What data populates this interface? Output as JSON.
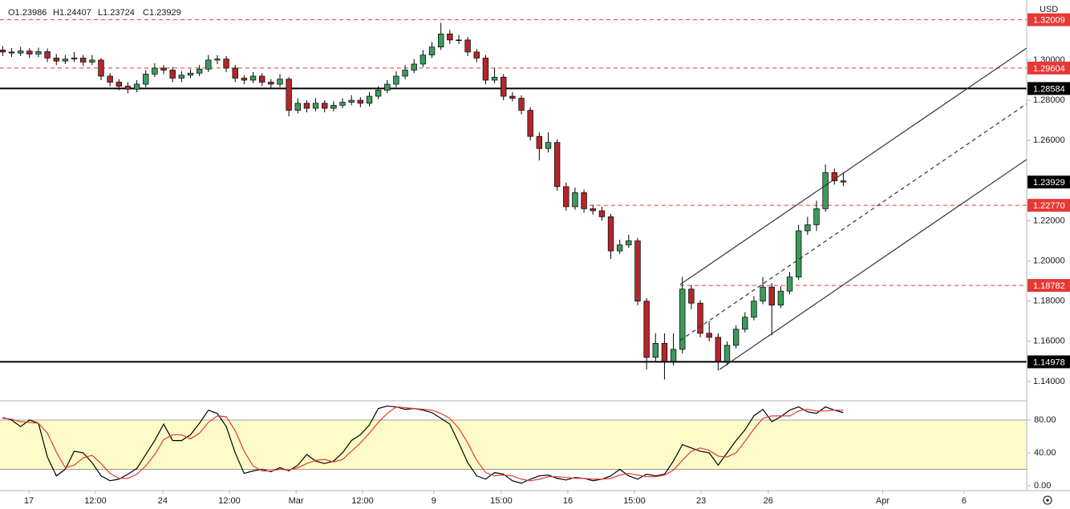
{
  "chart_data": [
    {
      "type": "candlestick",
      "currency": "USD",
      "ohlc_header": [
        "O1.23986",
        "H1.24407",
        "L1.23724",
        "C1.23929"
      ],
      "xlim": [
        -0.3,
        114.5
      ],
      "ylim": [
        1.1304,
        1.3299
      ],
      "yticks": [
        {
          "value": 1.14,
          "label": "1.14000"
        },
        {
          "value": 1.16,
          "label": "1.16000"
        },
        {
          "value": 1.18,
          "label": "1.18000"
        },
        {
          "value": 1.2,
          "label": "1.20000"
        },
        {
          "value": 1.22,
          "label": "1.22000"
        },
        {
          "value": 1.26,
          "label": "1.26000"
        },
        {
          "value": 1.28,
          "label": "1.28000"
        },
        {
          "value": 1.3,
          "label": "1.30000"
        }
      ],
      "up_color": "#3c9a5c",
      "down_color": "#b3262b",
      "candles": [
        [
          1.305,
          1.307,
          1.302,
          1.304
        ],
        [
          1.304,
          1.306,
          1.3015,
          1.3035
        ],
        [
          1.3035,
          1.3065,
          1.302,
          1.3045
        ],
        [
          1.3045,
          1.306,
          1.301,
          1.303
        ],
        [
          1.303,
          1.3062,
          1.3015,
          1.3042
        ],
        [
          1.3042,
          1.3058,
          1.299,
          1.301
        ],
        [
          1.301,
          1.303,
          1.2975,
          1.2995
        ],
        [
          1.2995,
          1.3025,
          1.298,
          1.3005
        ],
        [
          1.3005,
          1.304,
          1.299,
          1.301
        ],
        [
          1.301,
          1.3025,
          1.297,
          1.299
        ],
        [
          1.299,
          1.3025,
          1.2975,
          1.3
        ],
        [
          1.3,
          1.301,
          1.29,
          1.292
        ],
        [
          1.292,
          1.2935,
          1.287,
          1.289
        ],
        [
          1.289,
          1.2905,
          1.285,
          1.287
        ],
        [
          1.287,
          1.289,
          1.2835,
          1.2855
        ],
        [
          1.2855,
          1.29,
          1.284,
          1.288
        ],
        [
          1.288,
          1.295,
          1.2865,
          1.293
        ],
        [
          1.293,
          1.2985,
          1.2915,
          1.296
        ],
        [
          1.296,
          1.2975,
          1.293,
          1.295
        ],
        [
          1.295,
          1.2965,
          1.289,
          1.291
        ],
        [
          1.291,
          1.2945,
          1.289,
          1.2925
        ],
        [
          1.2925,
          1.2955,
          1.291,
          1.2935
        ],
        [
          1.2935,
          1.2975,
          1.292,
          1.2955
        ],
        [
          1.2955,
          1.3025,
          1.294,
          1.3
        ],
        [
          1.3,
          1.3025,
          1.298,
          1.3005
        ],
        [
          1.3005,
          1.302,
          1.294,
          1.296
        ],
        [
          1.296,
          1.2975,
          1.289,
          1.291
        ],
        [
          1.291,
          1.2925,
          1.288,
          1.29
        ],
        [
          1.29,
          1.294,
          1.2885,
          1.292
        ],
        [
          1.292,
          1.2935,
          1.287,
          1.289
        ],
        [
          1.289,
          1.2905,
          1.286,
          1.288
        ],
        [
          1.288,
          1.293,
          1.2865,
          1.2905
        ],
        [
          1.2905,
          1.2915,
          1.272,
          1.275
        ],
        [
          1.275,
          1.281,
          1.2735,
          1.2785
        ],
        [
          1.2785,
          1.28,
          1.274,
          1.276
        ],
        [
          1.276,
          1.281,
          1.2745,
          1.2785
        ],
        [
          1.2785,
          1.28,
          1.274,
          1.276
        ],
        [
          1.276,
          1.2795,
          1.2745,
          1.2775
        ],
        [
          1.2775,
          1.281,
          1.276,
          1.279
        ],
        [
          1.279,
          1.2825,
          1.2775,
          1.28
        ],
        [
          1.28,
          1.2815,
          1.2765,
          1.2785
        ],
        [
          1.2785,
          1.284,
          1.277,
          1.282
        ],
        [
          1.282,
          1.287,
          1.2805,
          1.285
        ],
        [
          1.285,
          1.29,
          1.2835,
          1.288
        ],
        [
          1.288,
          1.2945,
          1.2865,
          1.292
        ],
        [
          1.292,
          1.2975,
          1.2905,
          1.295
        ],
        [
          1.295,
          1.3005,
          1.2935,
          1.298
        ],
        [
          1.298,
          1.305,
          1.2965,
          1.3025
        ],
        [
          1.3025,
          1.309,
          1.301,
          1.3065
        ],
        [
          1.3065,
          1.3185,
          1.305,
          1.313
        ],
        [
          1.313,
          1.315,
          1.308,
          1.31
        ],
        [
          1.31,
          1.3125,
          1.308,
          1.31
        ],
        [
          1.31,
          1.3115,
          1.302,
          1.304
        ],
        [
          1.304,
          1.3055,
          1.299,
          1.301
        ],
        [
          1.301,
          1.3025,
          1.288,
          1.29
        ],
        [
          1.29,
          1.296,
          1.2885,
          1.2915
        ],
        [
          1.2915,
          1.293,
          1.28,
          1.282
        ],
        [
          1.282,
          1.284,
          1.2795,
          1.281
        ],
        [
          1.281,
          1.2825,
          1.273,
          1.275
        ],
        [
          1.275,
          1.2765,
          1.26,
          1.262
        ],
        [
          1.262,
          1.264,
          1.25,
          1.256
        ],
        [
          1.256,
          1.264,
          1.254,
          1.259
        ],
        [
          1.259,
          1.2605,
          1.235,
          1.237
        ],
        [
          1.237,
          1.239,
          1.225,
          1.227
        ],
        [
          1.227,
          1.2365,
          1.2255,
          1.234
        ],
        [
          1.234,
          1.2355,
          1.224,
          1.226
        ],
        [
          1.226,
          1.228,
          1.223,
          1.225
        ],
        [
          1.225,
          1.227,
          1.22,
          1.222
        ],
        [
          1.222,
          1.2235,
          1.201,
          1.205
        ],
        [
          1.205,
          1.2105,
          1.2035,
          1.208
        ],
        [
          1.208,
          1.213,
          1.2065,
          1.21
        ],
        [
          1.21,
          1.2115,
          1.178,
          1.18
        ],
        [
          1.18,
          1.1815,
          1.146,
          1.152
        ],
        [
          1.152,
          1.164,
          1.15,
          1.159
        ],
        [
          1.159,
          1.164,
          1.141,
          1.15
        ],
        [
          1.15,
          1.164,
          1.148,
          1.156
        ],
        [
          1.156,
          1.192,
          1.154,
          1.186
        ],
        [
          1.186,
          1.188,
          1.176,
          1.179
        ],
        [
          1.179,
          1.1805,
          1.162,
          1.164
        ],
        [
          1.164,
          1.17,
          1.16,
          1.162
        ],
        [
          1.162,
          1.164,
          1.1455,
          1.15
        ],
        [
          1.15,
          1.16,
          1.148,
          1.158
        ],
        [
          1.158,
          1.168,
          1.1565,
          1.166
        ],
        [
          1.166,
          1.1745,
          1.1645,
          1.172
        ],
        [
          1.172,
          1.1825,
          1.1705,
          1.18
        ],
        [
          1.18,
          1.192,
          1.1785,
          1.187
        ],
        [
          1.187,
          1.189,
          1.163,
          1.178
        ],
        [
          1.178,
          1.1875,
          1.1765,
          1.185
        ],
        [
          1.185,
          1.1945,
          1.1835,
          1.192
        ],
        [
          1.192,
          1.218,
          1.1905,
          1.215
        ],
        [
          1.215,
          1.222,
          1.213,
          1.218
        ],
        [
          1.218,
          1.23,
          1.215,
          1.226
        ],
        [
          1.226,
          1.248,
          1.2245,
          1.244
        ],
        [
          1.244,
          1.246,
          1.238,
          1.23986
        ],
        [
          1.23986,
          1.24407,
          1.23724,
          1.23929
        ]
      ],
      "price_lines": [
        {
          "value": 1.32009,
          "label": "1.32009",
          "color": "#e53935",
          "style": "dashed",
          "start": -0.3
        },
        {
          "value": 1.29604,
          "label": "1.29604",
          "color": "#e53935",
          "style": "dashed",
          "start": -0.3
        },
        {
          "value": 1.28584,
          "label": "1.28584",
          "color": "#000000",
          "style": "solid",
          "start": -0.3
        },
        {
          "value": 1.2277,
          "label": "1.22770",
          "color": "#e53935",
          "style": "dashed",
          "start": 65.6
        },
        {
          "value": 1.18782,
          "label": "1.18782",
          "color": "#e53935",
          "style": "dashed",
          "start": 75.75
        },
        {
          "value": 1.14978,
          "label": "1.14978",
          "color": "#000000",
          "style": "solid",
          "start": -0.3
        }
      ],
      "last_price": {
        "value": 1.23929,
        "label": "1.23929"
      },
      "channel": {
        "upper": [
          [
            75.75,
            1.18828
          ],
          [
            114.5,
            1.30599
          ]
        ],
        "middle": [
          [
            75.75,
            1.16045
          ],
          [
            114.5,
            1.27826
          ]
        ],
        "lower": [
          [
            80.15,
            1.14598
          ],
          [
            114.5,
            1.25053
          ]
        ]
      }
    },
    {
      "type": "line",
      "xlim": [
        -0.3,
        114.5
      ],
      "ylim": [
        -5.9,
        103.4
      ],
      "band": [
        20,
        80
      ],
      "yticks": [
        {
          "value": 0,
          "label": "0.00"
        },
        {
          "value": 40,
          "label": "40.00"
        },
        {
          "value": 80,
          "label": "80.00"
        }
      ],
      "xticks": [
        {
          "value": 2.93,
          "label": "17"
        },
        {
          "value": 10.37,
          "label": "12:00"
        },
        {
          "value": 17.9,
          "label": "24"
        },
        {
          "value": 25.35,
          "label": "12:00"
        },
        {
          "value": 32.8,
          "label": "Mar"
        },
        {
          "value": 40.24,
          "label": "12:00"
        },
        {
          "value": 48.2,
          "label": "9"
        },
        {
          "value": 55.75,
          "label": "15:00"
        },
        {
          "value": 63.2,
          "label": "16"
        },
        {
          "value": 70.64,
          "label": "15:00"
        },
        {
          "value": 78.1,
          "label": "23"
        },
        {
          "value": 85.6,
          "label": "26"
        },
        {
          "value": 98.4,
          "label": "Apr"
        },
        {
          "value": 107.5,
          "label": "6"
        }
      ],
      "series": [
        {
          "color": "#000000",
          "values": [
            83,
            80,
            72,
            80,
            76,
            35,
            12,
            20,
            42,
            40,
            28,
            12,
            6,
            8,
            14,
            21,
            38,
            55,
            75,
            55,
            55,
            62,
            76,
            92,
            88,
            72,
            40,
            15,
            18,
            20,
            17,
            22,
            18,
            25,
            38,
            30,
            27,
            30,
            40,
            55,
            62,
            74,
            94,
            97,
            96,
            93,
            94,
            92,
            89,
            82,
            75,
            52,
            28,
            12,
            8,
            16,
            14,
            6,
            3,
            8,
            12,
            13,
            9,
            7,
            10,
            9,
            6,
            8,
            12,
            20,
            12,
            8,
            14,
            12,
            14,
            30,
            50,
            46,
            42,
            40,
            25,
            40,
            55,
            68,
            85,
            93,
            78,
            84,
            92,
            96,
            90,
            88,
            96,
            92,
            89
          ]
        },
        {
          "color": "#e53935",
          "values": [
            82,
            81,
            78,
            77,
            76,
            64,
            41,
            22,
            25,
            34,
            37,
            27,
            15,
            9,
            9,
            14,
            24,
            38,
            56,
            62,
            62,
            57,
            64,
            77,
            85,
            84,
            67,
            42,
            24,
            18,
            18,
            20,
            19,
            22,
            27,
            31,
            32,
            29,
            32,
            42,
            52,
            64,
            77,
            88,
            96,
            95,
            94,
            93,
            92,
            88,
            82,
            70,
            52,
            31,
            16,
            12,
            13,
            12,
            8,
            6,
            8,
            11,
            11,
            10,
            9,
            9,
            8,
            8,
            9,
            13,
            15,
            13,
            11,
            11,
            13,
            19,
            31,
            42,
            46,
            43,
            36,
            35,
            40,
            54,
            69,
            82,
            85,
            85,
            85,
            91,
            93,
            91,
            91,
            92,
            92
          ]
        }
      ]
    }
  ]
}
